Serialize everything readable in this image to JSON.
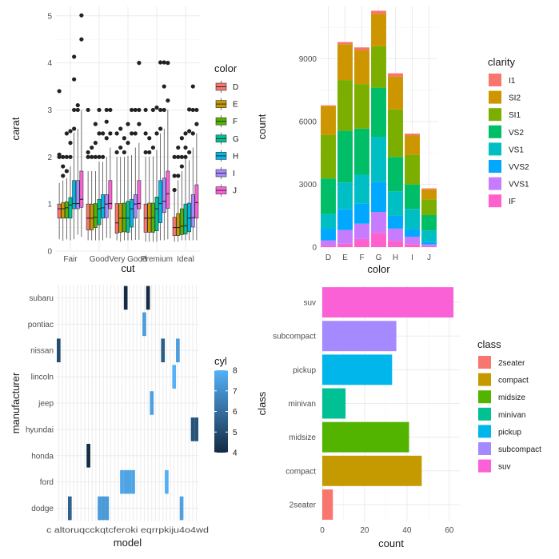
{
  "chart_data": [
    {
      "type": "boxplot",
      "panel": "top-left",
      "xlabel": "cut",
      "ylabel": "carat",
      "categories": [
        "Fair",
        "Good",
        "Very Good",
        "Premium",
        "Ideal"
      ],
      "yticks": [
        0,
        1,
        2,
        3,
        4,
        5
      ],
      "ylim": [
        0,
        5.2
      ],
      "legend": {
        "title": "color",
        "placement": "right",
        "entries": [
          {
            "label": "D",
            "color": "#F8766D"
          },
          {
            "label": "E",
            "color": "#C49A00"
          },
          {
            "label": "F",
            "color": "#53B400"
          },
          {
            "label": "G",
            "color": "#00C094"
          },
          {
            "label": "H",
            "color": "#00B6EB"
          },
          {
            "label": "I",
            "color": "#A58AFF"
          },
          {
            "label": "J",
            "color": "#FB61D7"
          }
        ]
      },
      "groups": [
        {
          "cut": "Fair",
          "boxes": [
            {
              "min": 0.25,
              "q1": 0.7,
              "median": 0.9,
              "q3": 1.0,
              "max": 1.45,
              "outliers": [
                2.0,
                2.05,
                3.4
              ]
            },
            {
              "min": 0.22,
              "q1": 0.7,
              "median": 0.9,
              "q3": 1.03,
              "max": 1.5,
              "outliers": [
                1.6,
                1.8,
                2.0
              ]
            },
            {
              "min": 0.25,
              "q1": 0.7,
              "median": 0.92,
              "q3": 1.05,
              "max": 1.55,
              "outliers": [
                1.7,
                2.0,
                2.5
              ]
            },
            {
              "min": 0.23,
              "q1": 0.7,
              "median": 0.98,
              "q3": 1.14,
              "max": 1.8,
              "outliers": [
                2.0,
                2.3,
                2.55
              ]
            },
            {
              "min": 0.25,
              "q1": 0.9,
              "median": 1.01,
              "q3": 1.5,
              "max": 2.52,
              "outliers": [
                2.6,
                3.0,
                3.65,
                4.13
              ]
            },
            {
              "min": 0.35,
              "q1": 0.9,
              "median": 1.01,
              "q3": 1.5,
              "max": 2.6,
              "outliers": [
                3.0,
                3.1
              ]
            },
            {
              "min": 0.3,
              "q1": 0.93,
              "median": 1.1,
              "q3": 1.7,
              "max": 3.0,
              "outliers": [
                4.5,
                5.01
              ]
            }
          ]
        },
        {
          "cut": "Good",
          "boxes": [
            {
              "min": 0.23,
              "q1": 0.45,
              "median": 0.7,
              "q3": 1.0,
              "max": 1.7,
              "outliers": [
                2.0,
                2.1,
                3.0
              ]
            },
            {
              "min": 0.23,
              "q1": 0.45,
              "median": 0.7,
              "q3": 1.0,
              "max": 1.7,
              "outliers": [
                2.0,
                2.2
              ]
            },
            {
              "min": 0.23,
              "q1": 0.5,
              "median": 0.72,
              "q3": 1.01,
              "max": 1.7,
              "outliers": [
                2.0,
                2.3,
                2.7
              ]
            },
            {
              "min": 0.23,
              "q1": 0.56,
              "median": 0.9,
              "q3": 1.1,
              "max": 1.9,
              "outliers": [
                2.0,
                2.5,
                3.0
              ]
            },
            {
              "min": 0.23,
              "q1": 0.7,
              "median": 0.92,
              "q3": 1.2,
              "max": 1.9,
              "outliers": [
                2.0,
                2.5
              ]
            },
            {
              "min": 0.28,
              "q1": 0.71,
              "median": 1.0,
              "q3": 1.2,
              "max": 2.0,
              "outliers": [
                2.4,
                2.75,
                3.0
              ]
            },
            {
              "min": 0.27,
              "q1": 0.9,
              "median": 1.01,
              "q3": 1.5,
              "max": 2.2,
              "outliers": [
                2.5,
                3.0
              ]
            }
          ]
        },
        {
          "cut": "Very Good",
          "boxes": [
            {
              "min": 0.23,
              "q1": 0.38,
              "median": 0.6,
              "q3": 1.01,
              "max": 2.0,
              "outliers": [
                2.1,
                2.5
              ]
            },
            {
              "min": 0.2,
              "q1": 0.4,
              "median": 0.7,
              "q3": 1.01,
              "max": 2.0,
              "outliers": [
                2.2,
                2.6
              ]
            },
            {
              "min": 0.23,
              "q1": 0.41,
              "median": 0.7,
              "q3": 1.02,
              "max": 2.0,
              "outliers": [
                2.1,
                2.4
              ]
            },
            {
              "min": 0.23,
              "q1": 0.4,
              "median": 0.7,
              "q3": 1.06,
              "max": 2.02,
              "outliers": [
                2.3,
                2.7
              ]
            },
            {
              "min": 0.23,
              "q1": 0.51,
              "median": 0.9,
              "q3": 1.1,
              "max": 2.04,
              "outliers": [
                2.5,
                3.0
              ]
            },
            {
              "min": 0.24,
              "q1": 0.7,
              "median": 1.0,
              "q3": 1.2,
              "max": 2.2,
              "outliers": [
                2.5,
                3.0
              ]
            },
            {
              "min": 0.24,
              "q1": 0.9,
              "median": 1.01,
              "q3": 1.5,
              "max": 2.3,
              "outliers": [
                2.7,
                3.0,
                4.0
              ]
            }
          ]
        },
        {
          "cut": "Premium",
          "boxes": [
            {
              "min": 0.2,
              "q1": 0.4,
              "median": 0.7,
              "q3": 1.0,
              "max": 2.0,
              "outliers": [
                2.1,
                2.5,
                3.0
              ]
            },
            {
              "min": 0.2,
              "q1": 0.4,
              "median": 0.7,
              "q3": 1.02,
              "max": 2.0,
              "outliers": [
                2.1,
                2.4
              ]
            },
            {
              "min": 0.2,
              "q1": 0.4,
              "median": 0.71,
              "q3": 1.02,
              "max": 2.01,
              "outliers": [
                2.2,
                3.0
              ]
            },
            {
              "min": 0.2,
              "q1": 0.43,
              "median": 0.9,
              "q3": 1.15,
              "max": 2.15,
              "outliers": [
                2.5,
                3.05
              ]
            },
            {
              "min": 0.23,
              "q1": 0.6,
              "median": 1.01,
              "q3": 1.5,
              "max": 2.5,
              "outliers": [
                2.6,
                3.0,
                4.01
              ]
            },
            {
              "min": 0.23,
              "q1": 0.82,
              "median": 1.06,
              "q3": 1.55,
              "max": 2.6,
              "outliers": [
                3.0,
                3.5,
                4.01
              ]
            },
            {
              "min": 0.25,
              "q1": 0.91,
              "median": 1.22,
              "q3": 1.7,
              "max": 3.0,
              "outliers": [
                3.2,
                4.0
              ]
            }
          ]
        },
        {
          "cut": "Ideal",
          "boxes": [
            {
              "min": 0.2,
              "q1": 0.33,
              "median": 0.5,
              "q3": 0.72,
              "max": 1.27,
              "outliers": [
                1.3,
                1.6,
                2.0
              ]
            },
            {
              "min": 0.2,
              "q1": 0.33,
              "median": 0.5,
              "q3": 0.8,
              "max": 1.5,
              "outliers": [
                1.6,
                2.0,
                2.2
              ]
            },
            {
              "min": 0.23,
              "q1": 0.35,
              "median": 0.53,
              "q3": 0.9,
              "max": 1.7,
              "outliers": [
                1.8,
                2.0,
                2.4
              ]
            },
            {
              "min": 0.23,
              "q1": 0.36,
              "median": 0.54,
              "q3": 1.0,
              "max": 1.97,
              "outliers": [
                2.0,
                2.2,
                2.5
              ]
            },
            {
              "min": 0.23,
              "q1": 0.41,
              "median": 0.7,
              "q3": 1.02,
              "max": 1.93,
              "outliers": [
                2.1,
                2.55,
                3.01
              ]
            },
            {
              "min": 0.23,
              "q1": 0.51,
              "median": 0.71,
              "q3": 1.2,
              "max": 2.2,
              "outliers": [
                2.5,
                3.0,
                3.5
              ]
            },
            {
              "min": 0.23,
              "q1": 0.7,
              "median": 1.03,
              "q3": 1.41,
              "max": 2.5,
              "outliers": [
                2.7,
                3.0
              ]
            }
          ]
        }
      ]
    },
    {
      "type": "bar",
      "stacked": true,
      "panel": "top-right",
      "xlabel": "color",
      "ylabel": "count",
      "categories": [
        "D",
        "E",
        "F",
        "G",
        "H",
        "I",
        "J"
      ],
      "yticks": [
        0,
        3000,
        6000,
        9000
      ],
      "ylim": [
        0,
        11500
      ],
      "legend": {
        "title": "clarity",
        "placement": "right",
        "entries": [
          {
            "label": "I1",
            "color": "#F8766D"
          },
          {
            "label": "SI2",
            "color": "#CD9600"
          },
          {
            "label": "SI1",
            "color": "#7CAE00"
          },
          {
            "label": "VS2",
            "color": "#00BE67"
          },
          {
            "label": "VS1",
            "color": "#00BFC4"
          },
          {
            "label": "VVS2",
            "color": "#00A9FF"
          },
          {
            "label": "VVS1",
            "color": "#C77CFF"
          },
          {
            "label": "IF",
            "color": "#FF61CC"
          }
        ]
      },
      "stack_order_bottom_to_top": [
        "IF",
        "VVS1",
        "VVS2",
        "VS1",
        "VS2",
        "SI1",
        "SI2",
        "I1"
      ],
      "series": [
        {
          "name": "I1",
          "values": [
            42,
            102,
            143,
            150,
            162,
            92,
            50
          ]
        },
        {
          "name": "SI2",
          "values": [
            1370,
            1713,
            1609,
            1548,
            1563,
            912,
            479
          ]
        },
        {
          "name": "SI1",
          "values": [
            2083,
            2426,
            2131,
            1976,
            2275,
            1424,
            750
          ]
        },
        {
          "name": "VS2",
          "values": [
            1697,
            2470,
            2201,
            2347,
            1643,
            1169,
            731
          ]
        },
        {
          "name": "VS1",
          "values": [
            705,
            1281,
            1364,
            2148,
            1169,
            962,
            542
          ]
        },
        {
          "name": "VVS2",
          "values": [
            553,
            991,
            975,
            1443,
            608,
            365,
            131
          ]
        },
        {
          "name": "VVS1",
          "values": [
            252,
            656,
            734,
            999,
            585,
            355,
            74
          ]
        },
        {
          "name": "IF",
          "values": [
            73,
            158,
            385,
            681,
            299,
            143,
            51
          ]
        }
      ]
    },
    {
      "type": "heatmap",
      "panel": "bottom-left",
      "xlabel": "model",
      "ylabel": "manufacturer",
      "x_tick_labels_overlapping": [
        "c",
        "alto",
        "u",
        "q",
        "c",
        "c",
        "k",
        "q",
        "t",
        "grand cherokee 4wd",
        "jetta",
        "m",
        "navigator",
        "u",
        "r",
        "4",
        "u",
        "r",
        "a4 wd"
      ],
      "x_tick_text_visible": "c altoruqcckqtcferoki  eqrrpkiju4o4wd",
      "n_models": 38,
      "rows": [
        "dodge",
        "ford",
        "honda",
        "hyundai",
        "jeep",
        "lincoln",
        "nissan",
        "pontiac",
        "subaru"
      ],
      "legend": {
        "title": "cyl",
        "placement": "right",
        "ticks": [
          4,
          5,
          6,
          7,
          8
        ],
        "low_color": "#132B43",
        "high_color": "#56B1F7"
      },
      "cells": [
        {
          "manufacturer": "dodge",
          "model_index": 3,
          "cyl": 5.6
        },
        {
          "manufacturer": "dodge",
          "model_index": 11,
          "cyl": 7.3
        },
        {
          "manufacturer": "dodge",
          "model_index": 12,
          "cyl": 7.3
        },
        {
          "manufacturer": "dodge",
          "model_index": 13,
          "cyl": 7.3
        },
        {
          "manufacturer": "dodge",
          "model_index": 33,
          "cyl": 7.5
        },
        {
          "manufacturer": "ford",
          "model_index": 17,
          "cyl": 7.6
        },
        {
          "manufacturer": "ford",
          "model_index": 18,
          "cyl": 7.6
        },
        {
          "manufacturer": "ford",
          "model_index": 19,
          "cyl": 7.6
        },
        {
          "manufacturer": "ford",
          "model_index": 20,
          "cyl": 7.6
        },
        {
          "manufacturer": "ford",
          "model_index": 29,
          "cyl": 7.9
        },
        {
          "manufacturer": "honda",
          "model_index": 8,
          "cyl": 4.0
        },
        {
          "manufacturer": "hyundai",
          "model_index": 36,
          "cyl": 5.2
        },
        {
          "manufacturer": "hyundai",
          "model_index": 37,
          "cyl": 5.2
        },
        {
          "manufacturer": "jeep",
          "model_index": 25,
          "cyl": 7.5
        },
        {
          "manufacturer": "lincoln",
          "model_index": 31,
          "cyl": 8.0
        },
        {
          "manufacturer": "nissan",
          "model_index": 0,
          "cyl": 5.0
        },
        {
          "manufacturer": "nissan",
          "model_index": 28,
          "cyl": 5.5
        },
        {
          "manufacturer": "nissan",
          "model_index": 32,
          "cyl": 7.4
        },
        {
          "manufacturer": "pontiac",
          "model_index": 23,
          "cyl": 7.4
        },
        {
          "manufacturer": "subaru",
          "model_index": 18,
          "cyl": 4.0
        },
        {
          "manufacturer": "subaru",
          "model_index": 24,
          "cyl": 4.0
        }
      ]
    },
    {
      "type": "bar",
      "orientation": "horizontal",
      "panel": "bottom-right",
      "xlabel": "count",
      "ylabel": "class",
      "categories": [
        "2seater",
        "compact",
        "midsize",
        "minivan",
        "pickup",
        "subcompact",
        "suv"
      ],
      "values": [
        5,
        47,
        41,
        11,
        33,
        35,
        62
      ],
      "xticks": [
        0,
        20,
        40,
        60
      ],
      "xlim": [
        0,
        65
      ],
      "legend": {
        "title": "class",
        "placement": "right",
        "entries": [
          {
            "label": "2seater",
            "color": "#F8766D"
          },
          {
            "label": "compact",
            "color": "#C49A00"
          },
          {
            "label": "midsize",
            "color": "#53B400"
          },
          {
            "label": "minivan",
            "color": "#00C094"
          },
          {
            "label": "pickup",
            "color": "#00B6EB"
          },
          {
            "label": "subcompact",
            "color": "#A58AFF"
          },
          {
            "label": "suv",
            "color": "#FB61D7"
          }
        ]
      }
    }
  ]
}
